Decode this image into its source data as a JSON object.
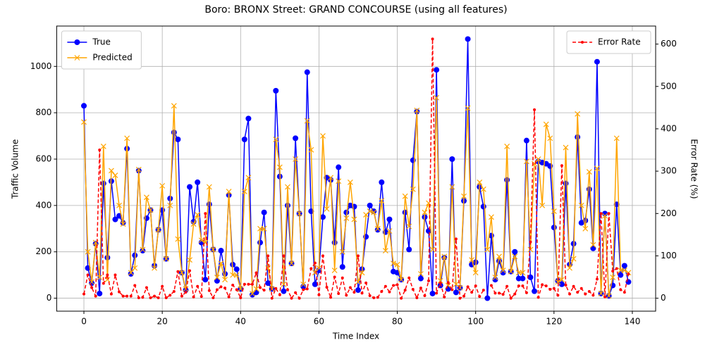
{
  "chart_data": {
    "type": "line",
    "title": "Boro: BRONX Street: GRAND CONCOURSE (using all features)",
    "xlabel": "Time Index",
    "ylabel": "Traffic Volume",
    "y2label": "Error Rate (%)",
    "x": [
      0,
      1,
      2,
      3,
      4,
      5,
      6,
      7,
      8,
      9,
      10,
      11,
      12,
      13,
      14,
      15,
      16,
      17,
      18,
      19,
      20,
      21,
      22,
      23,
      24,
      25,
      26,
      27,
      28,
      29,
      30,
      31,
      32,
      33,
      34,
      35,
      36,
      37,
      38,
      39,
      40,
      41,
      42,
      43,
      44,
      45,
      46,
      47,
      48,
      49,
      50,
      51,
      52,
      53,
      54,
      55,
      56,
      57,
      58,
      59,
      60,
      61,
      62,
      63,
      64,
      65,
      66,
      67,
      68,
      69,
      70,
      71,
      72,
      73,
      74,
      75,
      76,
      77,
      78,
      79,
      80,
      81,
      82,
      83,
      84,
      85,
      86,
      87,
      88,
      89,
      90,
      91,
      92,
      93,
      94,
      95,
      96,
      97,
      98,
      99,
      100,
      101,
      102,
      103,
      104,
      105,
      106,
      107,
      108,
      109,
      110,
      111,
      112,
      113,
      114,
      115,
      116,
      117,
      118,
      119,
      120,
      121,
      122,
      123,
      124,
      125,
      126,
      127,
      128,
      129,
      130,
      131,
      132,
      133,
      134,
      135,
      136,
      137,
      138,
      139
    ],
    "xlim": [
      -6.95,
      145.95
    ],
    "xticks": [
      0,
      20,
      40,
      60,
      80,
      100,
      120,
      140
    ],
    "ylim": [
      -56,
      1174
    ],
    "yticks": [
      0,
      200,
      400,
      600,
      800,
      1000
    ],
    "y2lim": [
      -30.6,
      642.6
    ],
    "y2ticks": [
      0,
      100,
      200,
      300,
      400,
      500,
      600
    ],
    "grid": true,
    "legend": {
      "y": "upper left",
      "y2": "upper right"
    },
    "series": [
      {
        "name": "True",
        "color": "#0000ff",
        "marker": "o",
        "linestyle": "solid",
        "values": [
          830,
          130,
          65,
          235,
          20,
          495,
          175,
          505,
          340,
          355,
          325,
          645,
          105,
          185,
          550,
          205,
          345,
          380,
          140,
          295,
          380,
          170,
          430,
          715,
          685,
          110,
          35,
          480,
          330,
          500,
          240,
          80,
          405,
          210,
          75,
          205,
          105,
          445,
          145,
          125,
          40,
          685,
          775,
          15,
          25,
          240,
          370,
          65,
          40,
          895,
          525,
          30,
          400,
          150,
          690,
          365,
          50,
          975,
          375,
          60,
          120,
          350,
          520,
          510,
          240,
          565,
          135,
          370,
          400,
          395,
          35,
          125,
          265,
          400,
          375,
          295,
          500,
          285,
          340,
          115,
          110,
          80,
          370,
          210,
          595,
          805,
          85,
          350,
          290,
          20,
          985,
          55,
          175,
          40,
          600,
          25,
          45,
          420,
          1118,
          145,
          155,
          480,
          395,
          0,
          270,
          80,
          160,
          110,
          510,
          115,
          200,
          85,
          85,
          680,
          90,
          30,
          590,
          585,
          580,
          570,
          305,
          75,
          60,
          495,
          145,
          235,
          695,
          325,
          335,
          470,
          215,
          1020,
          20,
          365,
          10,
          55,
          405,
          100,
          140,
          70
        ]
      },
      {
        "name": "Predicted",
        "color": "#ffa500",
        "marker": "x",
        "linestyle": "solid",
        "values": [
          760,
          200,
          70,
          240,
          90,
          655,
          80,
          550,
          530,
          400,
          320,
          690,
          110,
          130,
          555,
          210,
          435,
          380,
          130,
          295,
          485,
          170,
          400,
          830,
          255,
          110,
          40,
          165,
          320,
          360,
          250,
          240,
          480,
          210,
          90,
          150,
          80,
          460,
          100,
          100,
          40,
          460,
          520,
          20,
          40,
          300,
          300,
          130,
          40,
          685,
          565,
          60,
          480,
          150,
          600,
          365,
          60,
          765,
          640,
          110,
          130,
          700,
          385,
          520,
          120,
          505,
          200,
          345,
          500,
          340,
          70,
          110,
          360,
          375,
          370,
          300,
          420,
          205,
          290,
          150,
          145,
          80,
          440,
          310,
          470,
          810,
          105,
          370,
          410,
          210,
          865,
          75,
          180,
          55,
          480,
          60,
          45,
          440,
          820,
          165,
          110,
          500,
          470,
          210,
          350,
          90,
          180,
          120,
          655,
          115,
          180,
          110,
          110,
          590,
          210,
          580,
          600,
          400,
          750,
          690,
          375,
          70,
          80,
          650,
          130,
          170,
          795,
          400,
          300,
          545,
          230,
          560,
          20,
          355,
          10,
          90,
          690,
          120,
          120,
          110
        ]
      },
      {
        "name": "Error Rate",
        "color": "#ff0000",
        "marker": ".",
        "linestyle": "dashed",
        "axis": "y2",
        "values": [
          10,
          55,
          25,
          5,
          350,
          35,
          55,
          10,
          55,
          15,
          5,
          5,
          5,
          30,
          1,
          2,
          25,
          1,
          5,
          1,
          28,
          1,
          7,
          16,
          63,
          5,
          14,
          65,
          3,
          28,
          4,
          200,
          18,
          1,
          20,
          27,
          24,
          3,
          31,
          20,
          1,
          33,
          33,
          33,
          60,
          25,
          19,
          100,
          0,
          23,
          8,
          100,
          20,
          0,
          13,
          0,
          20,
          22,
          70,
          83,
          8,
          100,
          26,
          2,
          50,
          11,
          48,
          7,
          25,
          14,
          100,
          12,
          36,
          6,
          1,
          2,
          16,
          28,
          15,
          30,
          32,
          0,
          19,
          48,
          21,
          1,
          24,
          6,
          41,
          612,
          12,
          36,
          3,
          37,
          20,
          140,
          0,
          5,
          27,
          14,
          29,
          4,
          19,
          null,
          30,
          12,
          12,
          9,
          28,
          0,
          10,
          29,
          29,
          13,
          133,
          445,
          2,
          32,
          29,
          21,
          23,
          7,
          313,
          31,
          10,
          28,
          14,
          23,
          10,
          16,
          7,
          45,
          200,
          3,
          200,
          64,
          70,
          20,
          14,
          57
        ]
      }
    ]
  }
}
